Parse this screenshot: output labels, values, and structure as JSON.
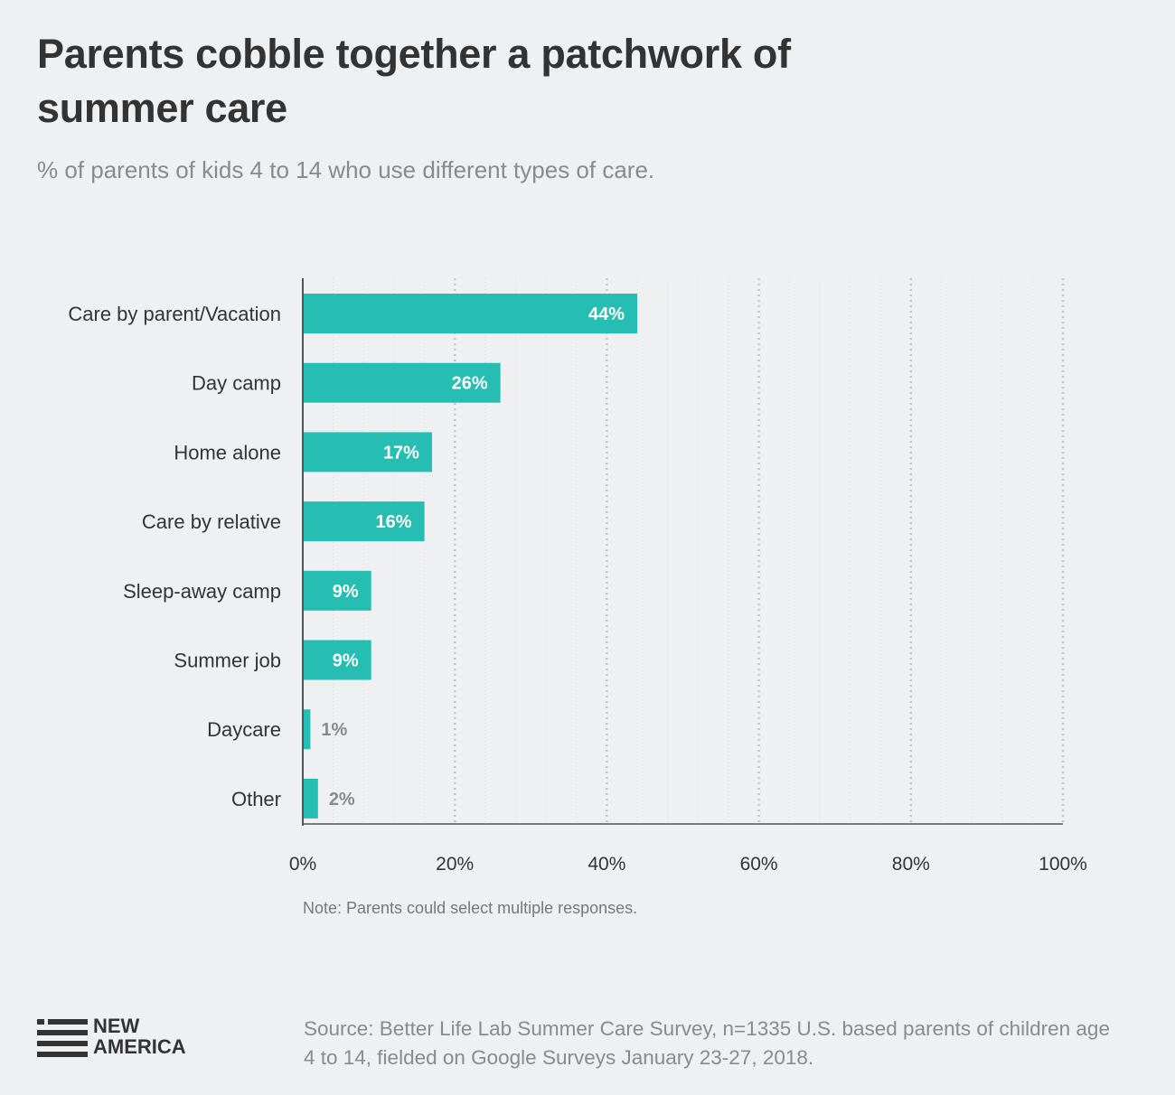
{
  "title": "Parents cobble together a patchwork of summer care",
  "subtitle": "% of parents of kids 4 to 14 who use different types of care.",
  "note": "Note: Parents could select multiple responses.",
  "source": "Source: Better Life Lab Summer Care Survey, n=1335 U.S. based parents of children age 4 to 14, fielded on Google Surveys January 23-27, 2018.",
  "logo": {
    "line1": "NEW",
    "line2": "AMERICA"
  },
  "colors": {
    "bar": "#26bdb2",
    "background": "#eff0f2",
    "text": "#333333",
    "muted": "#8a8a8a"
  },
  "chart_data": {
    "type": "bar",
    "orientation": "horizontal",
    "categories": [
      "Care by parent/Vacation",
      "Day camp",
      "Home alone",
      "Care by relative",
      "Sleep-away camp",
      "Summer job",
      "Daycare",
      "Other"
    ],
    "values": [
      44,
      26,
      17,
      16,
      9,
      9,
      1,
      2
    ],
    "value_labels": [
      "44%",
      "26%",
      "17%",
      "16%",
      "9%",
      "9%",
      "1%",
      "2%"
    ],
    "xlim": [
      0,
      100
    ],
    "xticks": [
      0,
      20,
      40,
      60,
      80,
      100
    ],
    "xtick_labels": [
      "0%",
      "20%",
      "40%",
      "60%",
      "80%",
      "100%"
    ],
    "grid": true
  }
}
